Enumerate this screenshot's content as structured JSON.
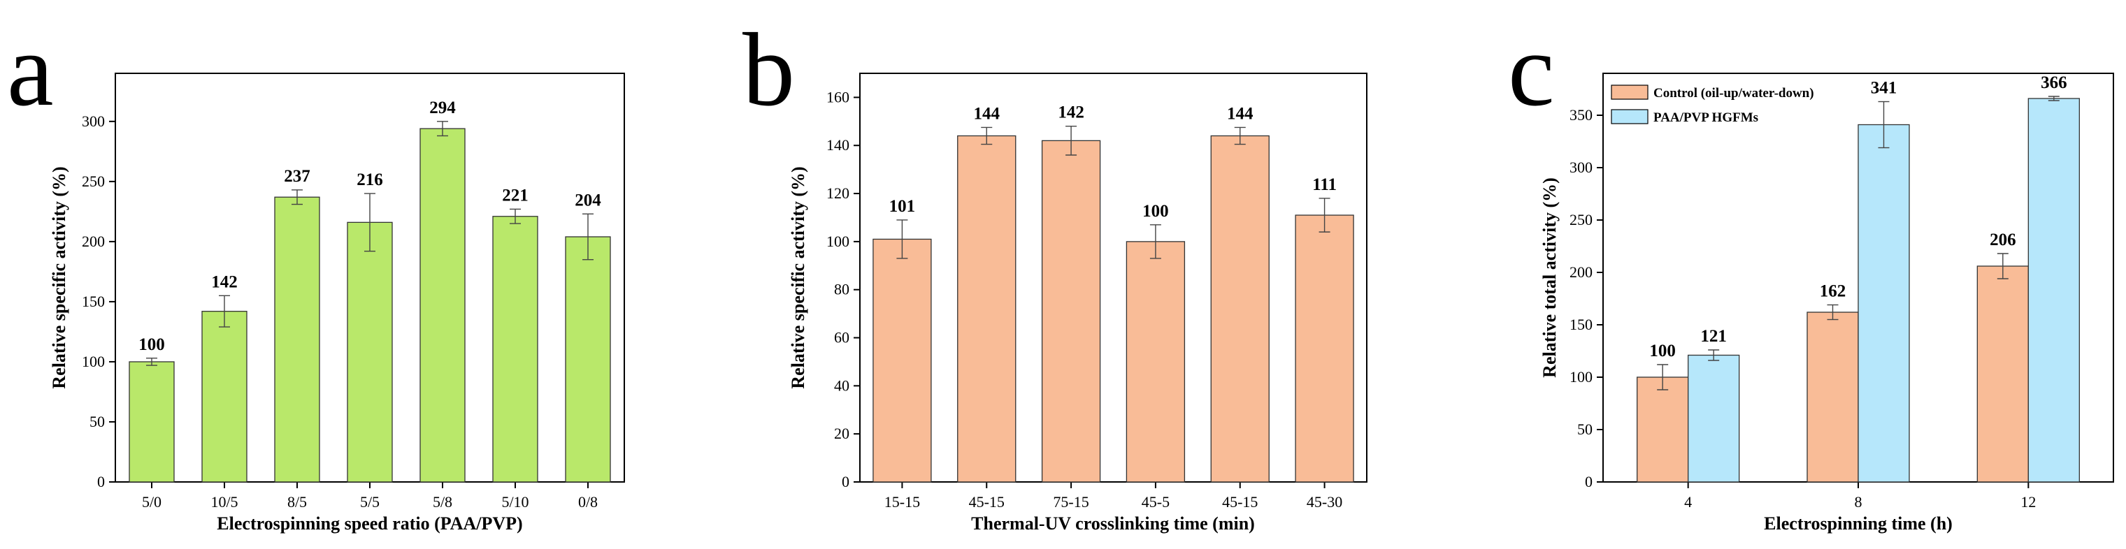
{
  "chart_data": [
    {
      "type": "bar",
      "panel": "a",
      "xlabel": "Electrospinning speed ratio (PAA/PVP)",
      "ylabel": "Relative specific activity (%)",
      "ylim": [
        0,
        340
      ],
      "yticks": [
        0,
        50,
        100,
        150,
        200,
        250,
        300
      ],
      "categories": [
        "5/0",
        "10/5",
        "8/5",
        "5/5",
        "5/8",
        "5/10",
        "0/8"
      ],
      "series": [
        {
          "name": "",
          "color": "#b9e86a",
          "values": [
            100,
            142,
            237,
            216,
            294,
            221,
            204
          ],
          "errors": [
            3,
            13,
            6,
            24,
            6,
            6,
            19
          ],
          "labels": [
            "100",
            "142",
            "237",
            "216",
            "294",
            "221",
            "204"
          ]
        }
      ]
    },
    {
      "type": "bar",
      "panel": "b",
      "xlabel": "Thermal-UV crosslinking time (min)",
      "ylabel": "Relative specific activity (%)",
      "ylim": [
        0,
        170
      ],
      "yticks": [
        0,
        20,
        40,
        60,
        80,
        100,
        120,
        140,
        160
      ],
      "categories": [
        "15-15",
        "45-15",
        "75-15",
        "45-5",
        "45-15",
        "45-30"
      ],
      "series": [
        {
          "name": "",
          "color": "#f9bc97",
          "values": [
            101,
            144,
            142,
            100,
            144,
            111
          ],
          "errors": [
            8,
            3.5,
            6,
            7,
            3.5,
            7
          ],
          "labels": [
            "101",
            "144",
            "142",
            "100",
            "144",
            "111"
          ]
        }
      ]
    },
    {
      "type": "bar",
      "panel": "c",
      "xlabel": "Electrospinning time (h)",
      "ylabel": "Relative total activity (%)",
      "ylim": [
        0,
        390
      ],
      "yticks": [
        0,
        50,
        100,
        150,
        200,
        250,
        300,
        350
      ],
      "categories": [
        "4",
        "8",
        "12"
      ],
      "legend_position": "top-left",
      "series": [
        {
          "name": "Control (oil-up/water-down)",
          "color": "#f9bc97",
          "values": [
            100,
            162,
            206
          ],
          "errors": [
            12,
            7,
            12
          ],
          "labels": [
            "100",
            "162",
            "206"
          ]
        },
        {
          "name": "PAA/PVP HGFMs",
          "color": "#b6e7fb",
          "values": [
            121,
            341,
            366
          ],
          "errors": [
            5,
            22,
            2
          ],
          "labels": [
            "121",
            "341",
            "366"
          ]
        }
      ]
    }
  ]
}
